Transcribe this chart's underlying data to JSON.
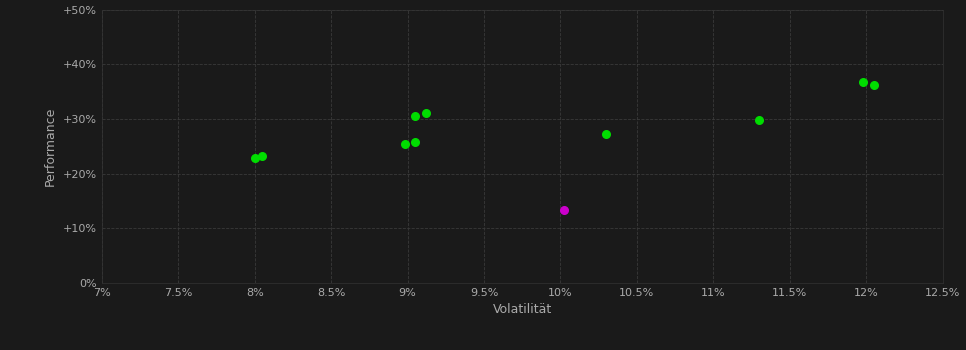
{
  "background_color": "#1a1a1a",
  "plot_bg_color": "#1a1a1a",
  "grid_color": "#3a3a3a",
  "text_color": "#aaaaaa",
  "xlabel": "Volatilität",
  "ylabel": "Performance",
  "xlim": [
    0.07,
    0.125
  ],
  "ylim": [
    0.0,
    0.5
  ],
  "xticks": [
    0.07,
    0.075,
    0.08,
    0.085,
    0.09,
    0.095,
    0.1,
    0.105,
    0.11,
    0.115,
    0.12,
    0.125
  ],
  "yticks": [
    0.0,
    0.1,
    0.2,
    0.3,
    0.4,
    0.5
  ],
  "green_points": [
    [
      0.08,
      0.228
    ],
    [
      0.0805,
      0.233
    ],
    [
      0.0898,
      0.254
    ],
    [
      0.0905,
      0.257
    ],
    [
      0.0905,
      0.305
    ],
    [
      0.0912,
      0.31
    ],
    [
      0.103,
      0.272
    ],
    [
      0.113,
      0.298
    ],
    [
      0.1198,
      0.368
    ],
    [
      0.1205,
      0.362
    ]
  ],
  "magenta_points": [
    [
      0.1002,
      0.133
    ]
  ],
  "point_size": 30,
  "marker": "o"
}
